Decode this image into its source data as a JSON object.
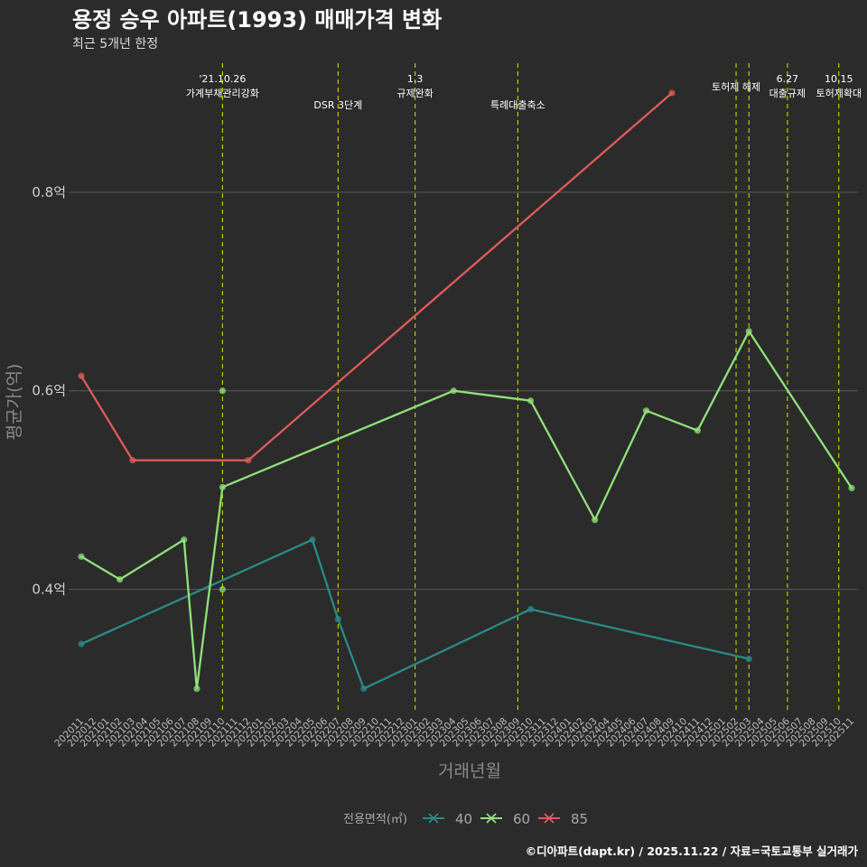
{
  "header": {
    "title": "용정 승우 아파트(1993) 매매가격 변화",
    "subtitle": "최근 5개년 한정"
  },
  "caption": "©디아파트(dapt.kr) / 2025.11.22 / 자료=국토교통부 실거래가",
  "colors": {
    "background": "#2b2b2b",
    "grid": "#5a5a5a",
    "event_line": "#c8d400",
    "s40": "#2a8a86",
    "s60": "#90e07a",
    "s85": "#e05a5a"
  },
  "chart_data": {
    "type": "line",
    "title": "용정 승우 아파트(1993) 매매가격 변화",
    "xlabel": "거래년월",
    "ylabel": "평균가(억)",
    "ylim": [
      0.275,
      0.93
    ],
    "y_ticks": [
      0.4,
      0.6,
      0.8
    ],
    "y_tick_labels": [
      "0.4억",
      "0.6억",
      "0.8억"
    ],
    "categories": [
      "202011",
      "202012",
      "202101",
      "202102",
      "202103",
      "202104",
      "202105",
      "202106",
      "202107",
      "202108",
      "202109",
      "202110",
      "202111",
      "202112",
      "202201",
      "202202",
      "202203",
      "202204",
      "202205",
      "202206",
      "202207",
      "202208",
      "202209",
      "202210",
      "202211",
      "202212",
      "202301",
      "202302",
      "202303",
      "202304",
      "202305",
      "202306",
      "202307",
      "202308",
      "202309",
      "202310",
      "202311",
      "202312",
      "202401",
      "202402",
      "202403",
      "202404",
      "202405",
      "202406",
      "202407",
      "202408",
      "202409",
      "202410",
      "202411",
      "202412",
      "202501",
      "202502",
      "202503",
      "202504",
      "202505",
      "202506",
      "202507",
      "202508",
      "202509",
      "202510",
      "202511"
    ],
    "legend_title": "전용면적(㎡)",
    "series": [
      {
        "name": "40",
        "color_key": "s40",
        "points": [
          [
            "202011",
            0.345
          ],
          [
            "202205",
            0.45
          ],
          [
            "202207",
            0.37
          ],
          [
            "202209",
            0.3
          ],
          [
            "202310",
            0.38
          ],
          [
            "202503",
            0.33
          ]
        ]
      },
      {
        "name": "60",
        "color_key": "s60",
        "points": [
          [
            "202011",
            0.433
          ],
          [
            "202102",
            0.41
          ],
          [
            "202107",
            0.45
          ],
          [
            "202108",
            0.3
          ],
          [
            "202110",
            0.503
          ],
          [
            "202304",
            0.6
          ],
          [
            "202310",
            0.59
          ],
          [
            "202403",
            0.47
          ],
          [
            "202407",
            0.58
          ],
          [
            "202411",
            0.56
          ],
          [
            "202503",
            0.66
          ],
          [
            "202511",
            0.502
          ]
        ],
        "extra_points": [
          [
            "202110",
            0.6
          ],
          [
            "202110",
            0.4
          ]
        ]
      },
      {
        "name": "85",
        "color_key": "s85",
        "points": [
          [
            "202011",
            0.615
          ],
          [
            "202103",
            0.53
          ],
          [
            "202112",
            0.53
          ],
          [
            "202409",
            0.9
          ]
        ]
      }
    ],
    "events": [
      {
        "date": "202110",
        "label_lines": [
          "'21.10.26",
          "가계부채관리강화"
        ],
        "level": 1
      },
      {
        "date": "202207",
        "label_lines": [
          "DSR 3단계"
        ],
        "level": 2
      },
      {
        "date": "202301",
        "label_lines": [
          "1.3",
          "규제완화"
        ],
        "level": 1
      },
      {
        "date": "202309",
        "label_lines": [
          "특례대출축소"
        ],
        "level": 2
      },
      {
        "date": "202502",
        "label_lines": [
          "토허제 해제"
        ],
        "level": 0
      },
      {
        "date": "202503",
        "label_lines": [],
        "level": 0
      },
      {
        "date": "202506",
        "label_lines": [
          "6.27",
          "대출규제"
        ],
        "level": 1
      },
      {
        "date": "202510",
        "label_lines": [
          "10.15",
          "토허제확대"
        ],
        "level": 1
      }
    ]
  }
}
